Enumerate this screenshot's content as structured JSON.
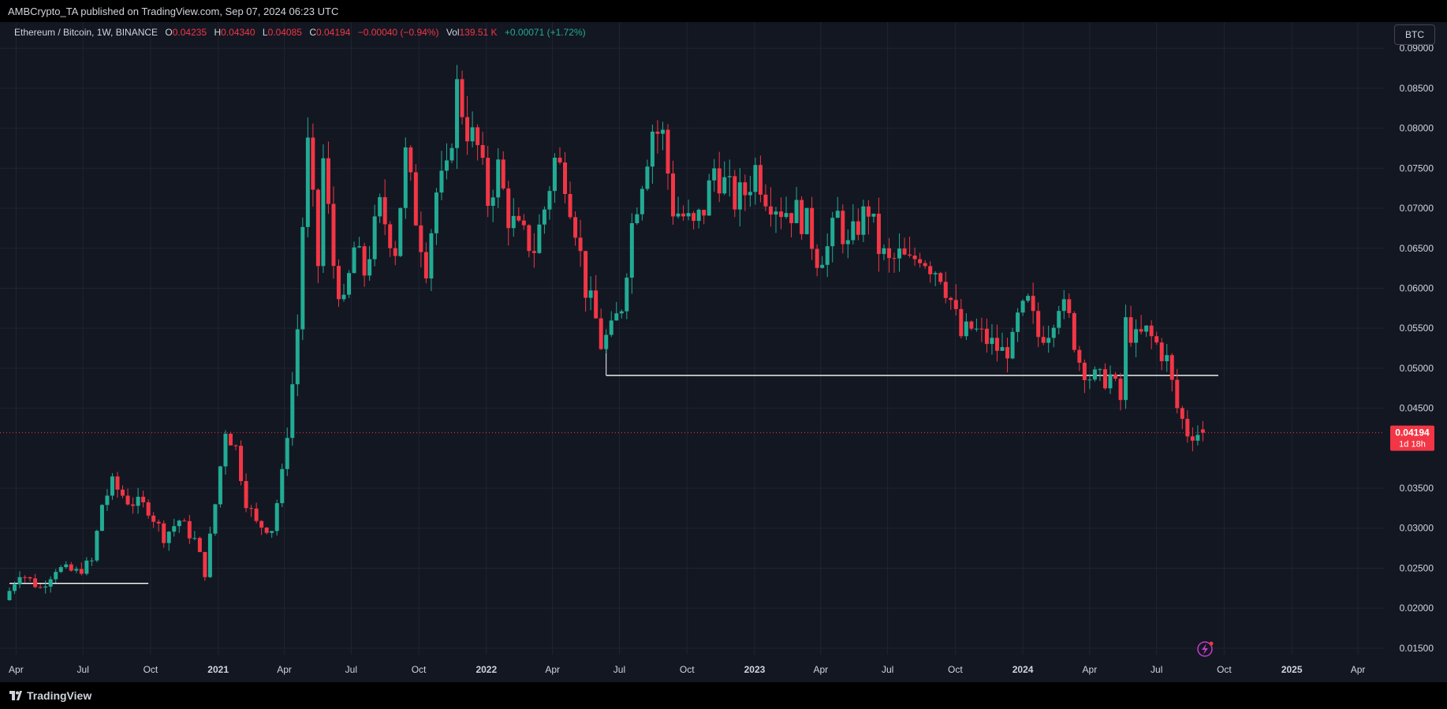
{
  "header": {
    "published_text": "AMBCrypto_TA published on TradingView.com, Sep 07, 2024 06:23 UTC"
  },
  "legend": {
    "symbol": "Ethereum / Bitcoin, 1W, BINANCE",
    "open_label": "O",
    "open": "0.04235",
    "high_label": "H",
    "high": "0.04340",
    "low_label": "L",
    "low": "0.04085",
    "close_label": "C",
    "close": "0.04194",
    "change": "−0.00040 (−0.94%)",
    "vol_label": "Vol",
    "vol": "139.51 K",
    "vol_change": "+0.00071 (+1.72%)"
  },
  "currency_button": "BTC",
  "price_badge": {
    "value": "0.04194",
    "countdown": "1d 18h"
  },
  "footer": {
    "brand": "TradingView"
  },
  "colors": {
    "background": "#131722",
    "grid": "#1f2431",
    "up": "#22ab94",
    "down": "#f23645",
    "axis_text": "#d1d4dc",
    "level_line": "#ffffff",
    "lightning": "#c43cc9"
  },
  "icons": {
    "lightning": "lightning-icon",
    "logo": "tradingview-logo-icon"
  },
  "chart_data": {
    "type": "candlestick",
    "timeframe": "1W",
    "ylim": [
      0.014,
      0.0915
    ],
    "y_ticks": [
      "0.09000",
      "0.08500",
      "0.08000",
      "0.07500",
      "0.07000",
      "0.06500",
      "0.06000",
      "0.05500",
      "0.05000",
      "0.04500",
      "0.03500",
      "0.03000",
      "0.02500",
      "0.02000",
      "0.01500"
    ],
    "x_ticks": [
      {
        "label": "Apr",
        "date": "2020-04-01",
        "bold": false
      },
      {
        "label": "Jul",
        "date": "2020-07-01",
        "bold": false
      },
      {
        "label": "Oct",
        "date": "2020-10-01",
        "bold": false
      },
      {
        "label": "2021",
        "date": "2021-01-01",
        "bold": true
      },
      {
        "label": "Apr",
        "date": "2021-04-01",
        "bold": false
      },
      {
        "label": "Jul",
        "date": "2021-07-01",
        "bold": false
      },
      {
        "label": "Oct",
        "date": "2021-10-01",
        "bold": false
      },
      {
        "label": "2022",
        "date": "2022-01-01",
        "bold": true
      },
      {
        "label": "Apr",
        "date": "2022-04-01",
        "bold": false
      },
      {
        "label": "Jul",
        "date": "2022-07-01",
        "bold": false
      },
      {
        "label": "Oct",
        "date": "2022-10-01",
        "bold": false
      },
      {
        "label": "2023",
        "date": "2023-01-01",
        "bold": true
      },
      {
        "label": "Apr",
        "date": "2023-04-01",
        "bold": false
      },
      {
        "label": "Jul",
        "date": "2023-07-01",
        "bold": false
      },
      {
        "label": "Oct",
        "date": "2023-10-01",
        "bold": false
      },
      {
        "label": "2024",
        "date": "2024-01-01",
        "bold": true
      },
      {
        "label": "Apr",
        "date": "2024-04-01",
        "bold": false
      },
      {
        "label": "Jul",
        "date": "2024-07-01",
        "bold": false
      },
      {
        "label": "Oct",
        "date": "2024-10-01",
        "bold": false
      },
      {
        "label": "2025",
        "date": "2025-01-01",
        "bold": true
      },
      {
        "label": "Apr",
        "date": "2025-04-01",
        "bold": false
      }
    ],
    "close_path": [
      [
        "2020-03-23",
        0.021
      ],
      [
        "2020-04-13",
        0.0245
      ],
      [
        "2020-05-11",
        0.0225
      ],
      [
        "2020-06-01",
        0.025
      ],
      [
        "2020-06-29",
        0.0245
      ],
      [
        "2020-07-20",
        0.0258
      ],
      [
        "2020-08-03",
        0.033
      ],
      [
        "2020-08-17",
        0.0355
      ],
      [
        "2020-09-07",
        0.0335
      ],
      [
        "2020-10-05",
        0.0325
      ],
      [
        "2020-10-26",
        0.029
      ],
      [
        "2020-11-16",
        0.031
      ],
      [
        "2020-12-07",
        0.0285
      ],
      [
        "2020-12-21",
        0.0245
      ],
      [
        "2021-01-04",
        0.033
      ],
      [
        "2021-01-18",
        0.0425
      ],
      [
        "2021-02-01",
        0.04
      ],
      [
        "2021-02-15",
        0.0335
      ],
      [
        "2021-03-01",
        0.0305
      ],
      [
        "2021-03-22",
        0.03
      ],
      [
        "2021-04-05",
        0.0365
      ],
      [
        "2021-04-19",
        0.048
      ],
      [
        "2021-04-26",
        0.055
      ],
      [
        "2021-05-03",
        0.068
      ],
      [
        "2021-05-10",
        0.0775
      ],
      [
        "2021-05-24",
        0.063
      ],
      [
        "2021-05-31",
        0.076
      ],
      [
        "2021-06-14",
        0.063
      ],
      [
        "2021-06-28",
        0.0575
      ],
      [
        "2021-07-12",
        0.065
      ],
      [
        "2021-07-26",
        0.062
      ],
      [
        "2021-08-16",
        0.07
      ],
      [
        "2021-09-06",
        0.065
      ],
      [
        "2021-09-20",
        0.0765
      ],
      [
        "2021-10-04",
        0.069
      ],
      [
        "2021-10-18",
        0.063
      ],
      [
        "2021-11-01",
        0.072
      ],
      [
        "2021-11-15",
        0.074
      ],
      [
        "2021-11-29",
        0.085
      ],
      [
        "2021-12-13",
        0.08
      ],
      [
        "2021-12-27",
        0.0775
      ],
      [
        "2022-01-10",
        0.071
      ],
      [
        "2022-01-24",
        0.075
      ],
      [
        "2022-02-07",
        0.069
      ],
      [
        "2022-02-21",
        0.067
      ],
      [
        "2022-03-14",
        0.065
      ],
      [
        "2022-03-28",
        0.07
      ],
      [
        "2022-04-11",
        0.076
      ],
      [
        "2022-04-25",
        0.074
      ],
      [
        "2022-05-09",
        0.068
      ],
      [
        "2022-05-23",
        0.06
      ],
      [
        "2022-06-06",
        0.056
      ],
      [
        "2022-06-13",
        0.053
      ],
      [
        "2022-06-27",
        0.0545
      ],
      [
        "2022-07-11",
        0.058
      ],
      [
        "2022-07-25",
        0.068
      ],
      [
        "2022-08-08",
        0.074
      ],
      [
        "2022-08-22",
        0.08
      ],
      [
        "2022-09-05",
        0.079
      ],
      [
        "2022-09-19",
        0.07
      ],
      [
        "2022-10-03",
        0.069
      ],
      [
        "2022-10-17",
        0.0675
      ],
      [
        "2022-10-31",
        0.07
      ],
      [
        "2022-11-14",
        0.075
      ],
      [
        "2022-11-28",
        0.073
      ],
      [
        "2022-12-12",
        0.071
      ],
      [
        "2022-12-26",
        0.072
      ],
      [
        "2023-01-09",
        0.075
      ],
      [
        "2023-01-23",
        0.072
      ],
      [
        "2023-02-13",
        0.07
      ],
      [
        "2023-03-06",
        0.0695
      ],
      [
        "2023-03-20",
        0.068
      ],
      [
        "2023-04-03",
        0.064
      ],
      [
        "2023-04-17",
        0.065
      ],
      [
        "2023-05-01",
        0.069
      ],
      [
        "2023-05-15",
        0.065
      ],
      [
        "2023-05-29",
        0.068
      ],
      [
        "2023-06-12",
        0.07
      ],
      [
        "2023-06-26",
        0.065
      ],
      [
        "2023-07-10",
        0.063
      ],
      [
        "2023-07-24",
        0.064
      ],
      [
        "2023-08-07",
        0.063
      ],
      [
        "2023-08-21",
        0.0645
      ],
      [
        "2023-09-04",
        0.063
      ],
      [
        "2023-09-18",
        0.062
      ],
      [
        "2023-10-02",
        0.0585
      ],
      [
        "2023-10-16",
        0.054
      ],
      [
        "2023-10-30",
        0.055
      ],
      [
        "2023-11-13",
        0.054
      ],
      [
        "2023-11-27",
        0.053
      ],
      [
        "2023-12-11",
        0.052
      ],
      [
        "2023-12-25",
        0.053
      ],
      [
        "2024-01-01",
        0.056
      ],
      [
        "2024-01-15",
        0.058
      ],
      [
        "2024-01-29",
        0.054
      ],
      [
        "2024-02-12",
        0.055
      ],
      [
        "2024-02-26",
        0.0585
      ],
      [
        "2024-03-11",
        0.056
      ],
      [
        "2024-03-25",
        0.051
      ],
      [
        "2024-04-08",
        0.049
      ],
      [
        "2024-04-22",
        0.0485
      ],
      [
        "2024-05-06",
        0.049
      ],
      [
        "2024-05-20",
        0.046
      ],
      [
        "2024-05-27",
        0.0555
      ],
      [
        "2024-06-10",
        0.0535
      ],
      [
        "2024-06-24",
        0.0545
      ],
      [
        "2024-07-08",
        0.053
      ],
      [
        "2024-07-22",
        0.051
      ],
      [
        "2024-08-05",
        0.045
      ],
      [
        "2024-08-19",
        0.042
      ],
      [
        "2024-09-02",
        0.0419
      ]
    ],
    "last_candle": {
      "date": "2024-09-02",
      "open": 0.04235,
      "high": 0.0434,
      "low": 0.04085,
      "close": 0.04194
    },
    "horizontal_lines": [
      {
        "price": 0.0231,
        "from": "2020-03-23",
        "to": "2020-09-28",
        "color": "#ffffff"
      },
      {
        "price": 0.0491,
        "from": "2022-06-13",
        "to": "2024-09-23",
        "color": "#ffffff"
      }
    ]
  }
}
